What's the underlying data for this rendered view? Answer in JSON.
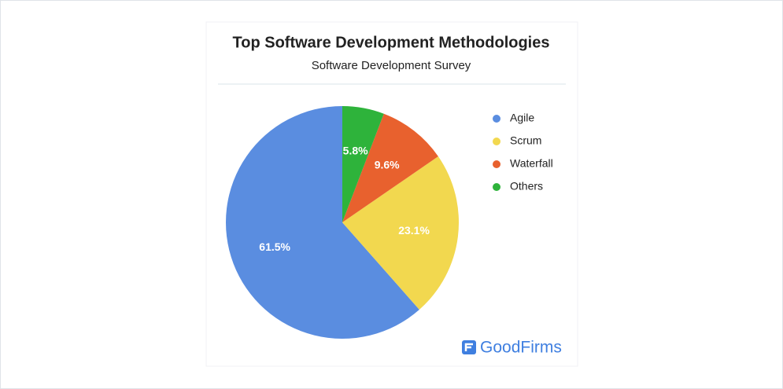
{
  "chart_data": {
    "type": "pie",
    "title": "Top Software Development Methodologies",
    "subtitle": "Software Development Survey",
    "categories": [
      "Agile",
      "Scrum",
      "Waterfall",
      "Others"
    ],
    "values": [
      61.5,
      23.1,
      9.6,
      5.8
    ],
    "value_labels": [
      "61.5%",
      "23.1%",
      "9.6%",
      "5.8%"
    ],
    "colors": [
      "#5a8de0",
      "#f2d84f",
      "#e8612e",
      "#2eb33b"
    ],
    "legend": "right"
  },
  "brand": "GoodFirms"
}
